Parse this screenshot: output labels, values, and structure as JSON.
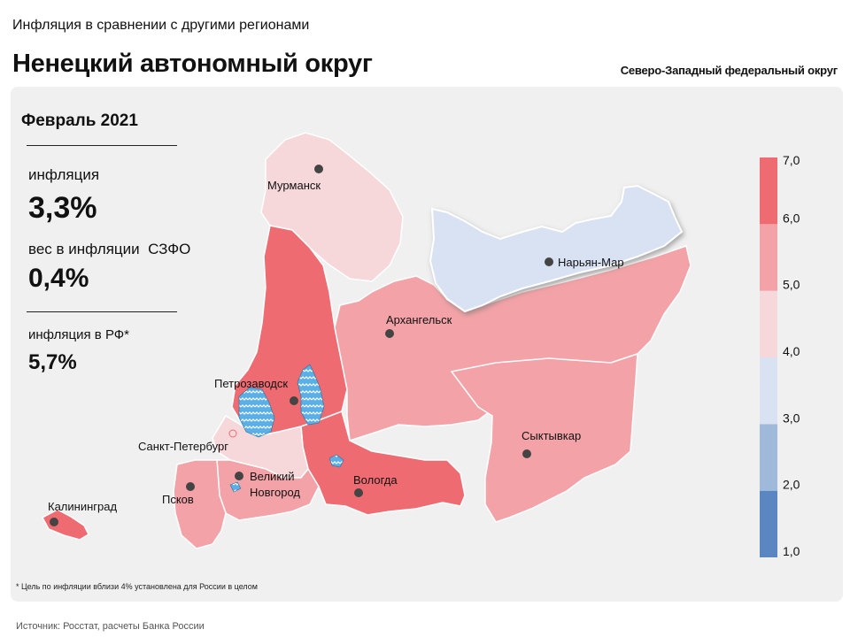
{
  "header": {
    "subtitle": "Инфляция в сравнении с другими регионами",
    "title": "Ненецкий автономный округ",
    "district": "Северо-Западный федеральный округ"
  },
  "side_panel": {
    "period": "Февраль 2021",
    "inflation_label": "инфляция",
    "inflation_value": "3,3%",
    "weight_label": "вес в инфляции",
    "weight_suffix": "СЗФО",
    "weight_value": "0,4%",
    "rf_label": "инфляция  в РФ*",
    "rf_value": "5,7%"
  },
  "footnote": "* Цель по инфляции вблизи 4% установлена для России в целом",
  "source": "Источник: Росстат, расчеты Банка России",
  "legend": {
    "ticks": [
      "7,0",
      "6,0",
      "5,0",
      "4,0",
      "3,0",
      "2,0",
      "1,0"
    ],
    "bins": [
      {
        "from": 1.0,
        "to": 2.0,
        "color": "#5a86c2"
      },
      {
        "from": 2.0,
        "to": 3.0,
        "color": "#9fb9db"
      },
      {
        "from": 3.0,
        "to": 4.0,
        "color": "#d8e2f2"
      },
      {
        "from": 4.0,
        "to": 5.0,
        "color": "#f6d7da"
      },
      {
        "from": 5.0,
        "to": 6.0,
        "color": "#f3a3a7"
      },
      {
        "from": 6.0,
        "to": 7.0,
        "color": "#ee6c71"
      }
    ]
  },
  "map": {
    "highlight_region": "Нарьян-Мар",
    "cities": [
      {
        "name": "Мурманск"
      },
      {
        "name": "Нарьян-Мар"
      },
      {
        "name": "Архангельск"
      },
      {
        "name": "Петрозаводск"
      },
      {
        "name": "Санкт-Петербург"
      },
      {
        "name": "Сыктывкар"
      },
      {
        "name": "Великий\nНовгород",
        "lines": [
          "Великий",
          "Новгород"
        ]
      },
      {
        "name": "Вологда"
      },
      {
        "name": "Псков"
      },
      {
        "name": "Калининград"
      }
    ]
  }
}
